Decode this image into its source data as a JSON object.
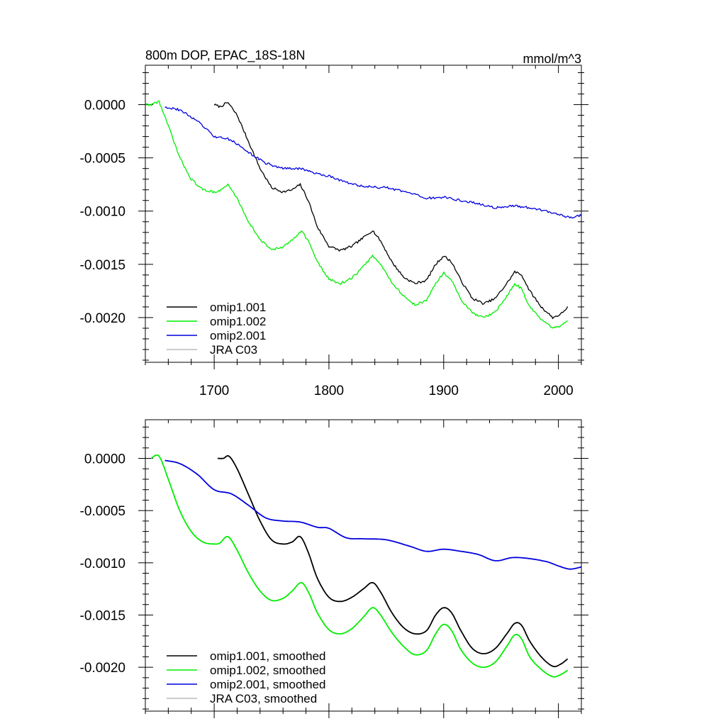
{
  "chart_data": [
    {
      "type": "line",
      "title": "800m DOP, EPAC_18S-18N",
      "units": "mmol/m^3",
      "xlim": [
        1640,
        2020
      ],
      "ylim": [
        -0.00242,
        0.00037
      ],
      "xticks": [
        1700,
        1800,
        1900,
        2000
      ],
      "xtick_labels": [
        "1700",
        "1800",
        "1900",
        "2000"
      ],
      "yticks": [
        0,
        -0.0005,
        -0.001,
        -0.0015,
        -0.002
      ],
      "ytick_labels": [
        "0.0000",
        "-0.0005",
        "-0.0010",
        "-0.0015",
        "-0.0020"
      ],
      "grid": false,
      "legend_position": "bottom-left",
      "noisy": true,
      "series": [
        {
          "name": "omip1.001",
          "color": "#000000",
          "x": [
            1700,
            1705,
            1712,
            1720,
            1730,
            1740,
            1750,
            1760,
            1768,
            1775,
            1782,
            1790,
            1800,
            1810,
            1820,
            1830,
            1838,
            1845,
            1855,
            1865,
            1875,
            1885,
            1893,
            1900,
            1907,
            1915,
            1925,
            1935,
            1945,
            1955,
            1962,
            1968,
            1975,
            1985,
            1995,
            2002,
            2008
          ],
          "y": [
            -0.0,
            -2e-05,
            2e-05,
            -0.0001,
            -0.00035,
            -0.0006,
            -0.00078,
            -0.00082,
            -0.0008,
            -0.00075,
            -0.0009,
            -0.00115,
            -0.00133,
            -0.00137,
            -0.00133,
            -0.00125,
            -0.00118,
            -0.00128,
            -0.00148,
            -0.00162,
            -0.00168,
            -0.00165,
            -0.0015,
            -0.00142,
            -0.00148,
            -0.00165,
            -0.00182,
            -0.00187,
            -0.00182,
            -0.00168,
            -0.00157,
            -0.0016,
            -0.00175,
            -0.0019,
            -0.002,
            -0.00197,
            -0.0019
          ]
        },
        {
          "name": "omip1.002",
          "color": "#00ee00",
          "x": [
            1640,
            1645,
            1652,
            1660,
            1670,
            1680,
            1690,
            1700,
            1705,
            1712,
            1720,
            1730,
            1740,
            1750,
            1760,
            1768,
            1776,
            1783,
            1790,
            1800,
            1810,
            1820,
            1830,
            1838,
            1845,
            1855,
            1865,
            1875,
            1885,
            1893,
            1900,
            1907,
            1915,
            1925,
            1935,
            1945,
            1955,
            1962,
            1968,
            1975,
            1985,
            1995,
            2002,
            2008
          ],
          "y": [
            0.0,
            0.0,
            3e-05,
            -0.0002,
            -0.0005,
            -0.0007,
            -0.0008,
            -0.00082,
            -0.00081,
            -0.00075,
            -0.00088,
            -0.0011,
            -0.00127,
            -0.00136,
            -0.00134,
            -0.00127,
            -0.00118,
            -0.0013,
            -0.00148,
            -0.00164,
            -0.00168,
            -0.00163,
            -0.00152,
            -0.00142,
            -0.0015,
            -0.00167,
            -0.0018,
            -0.00188,
            -0.00184,
            -0.00168,
            -0.00158,
            -0.00165,
            -0.00183,
            -0.00196,
            -0.002,
            -0.00195,
            -0.0018,
            -0.00168,
            -0.00173,
            -0.0019,
            -0.00202,
            -0.0021,
            -0.00208,
            -0.00202
          ]
        },
        {
          "name": "omip2.001",
          "color": "#0000dd",
          "x": [
            1657,
            1670,
            1685,
            1700,
            1715,
            1730,
            1745,
            1760,
            1775,
            1790,
            1800,
            1815,
            1830,
            1850,
            1870,
            1885,
            1900,
            1915,
            1930,
            1945,
            1960,
            1975,
            1990,
            2000,
            2010,
            2020
          ],
          "y": [
            -2e-05,
            -5e-05,
            -0.00015,
            -0.0003,
            -0.00033,
            -0.00045,
            -0.00055,
            -0.0006,
            -0.0006,
            -0.00065,
            -0.00067,
            -0.00073,
            -0.00077,
            -0.00078,
            -0.00083,
            -0.00088,
            -0.00087,
            -0.0009,
            -0.00093,
            -0.00097,
            -0.00095,
            -0.00097,
            -0.001,
            -0.00103,
            -0.00106,
            -0.00104
          ]
        },
        {
          "name": "JRA C03",
          "color": "#bbbbbb",
          "x": [],
          "y": []
        }
      ]
    },
    {
      "type": "line",
      "xlim": [
        1640,
        2020
      ],
      "ylim": [
        -0.00242,
        0.00037
      ],
      "xticks": [
        1700,
        1800,
        1900,
        2000
      ],
      "yticks": [
        0,
        -0.0005,
        -0.001,
        -0.0015,
        -0.002
      ],
      "ytick_labels": [
        "0.0000",
        "-0.0005",
        "-0.0010",
        "-0.0015",
        "-0.0020"
      ],
      "grid": false,
      "legend_position": "bottom-left",
      "noisy": false,
      "series": [
        {
          "name": "omip1.001, smoothed",
          "color": "#000000",
          "x": [
            1703,
            1708,
            1713,
            1720,
            1730,
            1740,
            1750,
            1760,
            1768,
            1775,
            1782,
            1790,
            1800,
            1810,
            1820,
            1830,
            1838,
            1845,
            1855,
            1865,
            1875,
            1885,
            1893,
            1900,
            1907,
            1915,
            1925,
            1935,
            1945,
            1955,
            1962,
            1968,
            1975,
            1985,
            1995,
            2002,
            2008
          ],
          "y": [
            -0.0,
            0.0,
            2e-05,
            -0.0001,
            -0.00035,
            -0.0006,
            -0.00078,
            -0.00082,
            -0.0008,
            -0.00075,
            -0.0009,
            -0.00115,
            -0.00133,
            -0.00137,
            -0.00133,
            -0.00125,
            -0.00119,
            -0.00128,
            -0.00148,
            -0.00162,
            -0.00168,
            -0.00165,
            -0.0015,
            -0.00143,
            -0.00148,
            -0.00165,
            -0.00182,
            -0.00187,
            -0.00182,
            -0.00168,
            -0.00158,
            -0.0016,
            -0.00175,
            -0.0019,
            -0.00199,
            -0.00197,
            -0.00192
          ]
        },
        {
          "name": "omip1.002, smoothed",
          "color": "#00ee00",
          "x": [
            1645,
            1652,
            1660,
            1670,
            1680,
            1690,
            1700,
            1705,
            1712,
            1720,
            1730,
            1740,
            1750,
            1760,
            1768,
            1776,
            1783,
            1790,
            1800,
            1810,
            1820,
            1830,
            1838,
            1845,
            1855,
            1865,
            1875,
            1885,
            1893,
            1900,
            1907,
            1915,
            1925,
            1935,
            1945,
            1955,
            1962,
            1968,
            1975,
            1985,
            1995,
            2002,
            2008
          ],
          "y": [
            0.0,
            2e-05,
            -0.0002,
            -0.0005,
            -0.0007,
            -0.0008,
            -0.00082,
            -0.00081,
            -0.00075,
            -0.00088,
            -0.0011,
            -0.00127,
            -0.00136,
            -0.00134,
            -0.00127,
            -0.00119,
            -0.0013,
            -0.00148,
            -0.00164,
            -0.00168,
            -0.00163,
            -0.00152,
            -0.00143,
            -0.0015,
            -0.00167,
            -0.0018,
            -0.00188,
            -0.00184,
            -0.00168,
            -0.00159,
            -0.00165,
            -0.00183,
            -0.00196,
            -0.002,
            -0.00195,
            -0.0018,
            -0.00169,
            -0.00173,
            -0.0019,
            -0.00202,
            -0.00209,
            -0.00207,
            -0.00203
          ]
        },
        {
          "name": "omip2.001, smoothed",
          "color": "#0000dd",
          "x": [
            1657,
            1670,
            1685,
            1700,
            1715,
            1730,
            1745,
            1760,
            1775,
            1790,
            1800,
            1815,
            1830,
            1850,
            1870,
            1885,
            1900,
            1915,
            1930,
            1945,
            1960,
            1975,
            1990,
            2000,
            2010,
            2020
          ],
          "y": [
            -2e-05,
            -5e-05,
            -0.00015,
            -0.0003,
            -0.00034,
            -0.00045,
            -0.00057,
            -0.0006,
            -0.00061,
            -0.00066,
            -0.00067,
            -0.00076,
            -0.00077,
            -0.00078,
            -0.00084,
            -0.00089,
            -0.00087,
            -0.00089,
            -0.00092,
            -0.00098,
            -0.00095,
            -0.00096,
            -0.00099,
            -0.00103,
            -0.00106,
            -0.00104
          ]
        },
        {
          "name": "JRA C03, smoothed",
          "color": "#bbbbbb",
          "x": [],
          "y": []
        }
      ]
    }
  ]
}
